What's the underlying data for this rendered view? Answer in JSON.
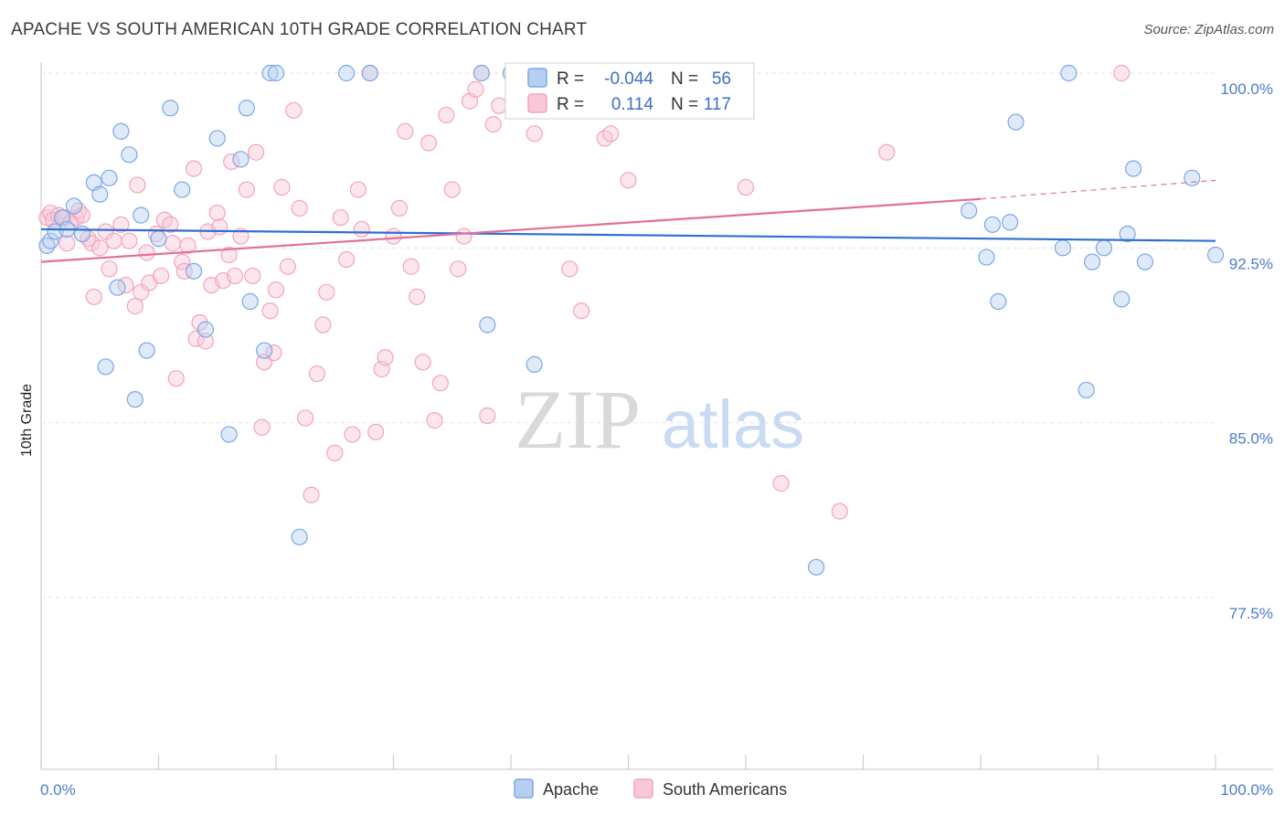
{
  "title": "APACHE VS SOUTH AMERICAN 10TH GRADE CORRELATION CHART",
  "source": "Source: ZipAtlas.com",
  "watermark": {
    "zip": "ZIP",
    "atlas": "atlas"
  },
  "chart_data": {
    "type": "scatter",
    "ylabel": "10th Grade",
    "xlim": [
      0,
      100
    ],
    "ylim": [
      70,
      101
    ],
    "x_tick_labels": [
      "0.0%",
      "100.0%"
    ],
    "y_ticks": [
      {
        "value": 100,
        "label": "100.0%"
      },
      {
        "value": 92.5,
        "label": "92.5%"
      },
      {
        "value": 85,
        "label": "85.0%"
      },
      {
        "value": 77.5,
        "label": "77.5%"
      }
    ],
    "grid": true,
    "legend_position": "top-center",
    "series": [
      {
        "name": "Apache",
        "color": "#7aa7e6",
        "line_color": "#2f6fd0",
        "r_label": "R =",
        "r_value": "-0.044",
        "n_label": "N =",
        "n_value": "56",
        "trend": {
          "x": [
            0,
            100
          ],
          "y": [
            93.3,
            92.8
          ]
        },
        "points": [
          [
            0.5,
            92.6
          ],
          [
            0.8,
            92.8
          ],
          [
            1.2,
            93.2
          ],
          [
            1.8,
            93.8
          ],
          [
            2.2,
            93.3
          ],
          [
            2.8,
            94.3
          ],
          [
            3.5,
            93.1
          ],
          [
            4.5,
            95.3
          ],
          [
            5,
            94.8
          ],
          [
            5.8,
            95.5
          ],
          [
            6.5,
            90.8
          ],
          [
            6.8,
            97.5
          ],
          [
            7.5,
            96.5
          ],
          [
            8.5,
            93.9
          ],
          [
            9,
            88.1
          ],
          [
            8,
            86.0
          ],
          [
            5.5,
            87.4
          ],
          [
            10,
            92.9
          ],
          [
            11,
            98.5
          ],
          [
            12,
            95.0
          ],
          [
            13,
            91.5
          ],
          [
            14,
            89.0
          ],
          [
            15,
            97.2
          ],
          [
            16,
            84.5
          ],
          [
            17,
            96.3
          ],
          [
            17.5,
            98.5
          ],
          [
            17.8,
            90.2
          ],
          [
            19,
            88.1
          ],
          [
            19.5,
            100
          ],
          [
            20,
            100
          ],
          [
            22,
            80.1
          ],
          [
            26,
            100
          ],
          [
            28,
            100
          ],
          [
            38,
            89.2
          ],
          [
            37.5,
            100
          ],
          [
            40,
            100
          ],
          [
            42,
            87.5
          ],
          [
            43,
            100
          ],
          [
            44,
            100
          ],
          [
            46,
            100
          ],
          [
            66,
            78.8
          ],
          [
            79,
            94.1
          ],
          [
            80.5,
            92.1
          ],
          [
            81,
            93.5
          ],
          [
            81.5,
            90.2
          ],
          [
            82.5,
            93.6
          ],
          [
            83,
            97.9
          ],
          [
            87,
            92.5
          ],
          [
            87.5,
            100
          ],
          [
            89.5,
            91.9
          ],
          [
            90.5,
            92.5
          ],
          [
            89,
            86.4
          ],
          [
            92,
            90.3
          ],
          [
            92.5,
            93.1
          ],
          [
            93,
            95.9
          ],
          [
            94,
            91.9
          ],
          [
            98,
            95.5
          ],
          [
            100,
            92.2
          ]
        ]
      },
      {
        "name": "South Americans",
        "color": "#f4a3bd",
        "line_color": "#e0709a",
        "r_label": "R =",
        "r_value": "0.114",
        "n_label": "N =",
        "n_value": "117",
        "trend": {
          "x": [
            0,
            80
          ],
          "y": [
            91.9,
            94.6
          ]
        },
        "trend_dashed": {
          "x": [
            80,
            100
          ],
          "y": [
            94.6,
            95.4
          ]
        },
        "points": [
          [
            0.5,
            93.8
          ],
          [
            0.8,
            94.0
          ],
          [
            1,
            93.7
          ],
          [
            1.5,
            93.9
          ],
          [
            2,
            93.8
          ],
          [
            2.2,
            92.7
          ],
          [
            2.5,
            93.6
          ],
          [
            3,
            93.8
          ],
          [
            3.2,
            94.1
          ],
          [
            3.5,
            93.9
          ],
          [
            4,
            92.9
          ],
          [
            4.3,
            92.7
          ],
          [
            4.5,
            90.4
          ],
          [
            5,
            92.5
          ],
          [
            5.5,
            93.2
          ],
          [
            5.8,
            91.6
          ],
          [
            6.2,
            92.8
          ],
          [
            6.8,
            93.5
          ],
          [
            7.2,
            90.9
          ],
          [
            7.5,
            92.8
          ],
          [
            8,
            90.0
          ],
          [
            8.2,
            95.2
          ],
          [
            8.5,
            90.6
          ],
          [
            9,
            92.3
          ],
          [
            9.2,
            91.0
          ],
          [
            9.8,
            93.1
          ],
          [
            10.2,
            91.3
          ],
          [
            10.5,
            93.7
          ],
          [
            11,
            93.5
          ],
          [
            11.2,
            92.7
          ],
          [
            11.5,
            86.9
          ],
          [
            12,
            91.9
          ],
          [
            12.2,
            91.5
          ],
          [
            12.5,
            92.6
          ],
          [
            13,
            95.9
          ],
          [
            13.2,
            88.6
          ],
          [
            13.5,
            89.3
          ],
          [
            14,
            88.5
          ],
          [
            14.2,
            93.2
          ],
          [
            14.5,
            90.9
          ],
          [
            15,
            94.0
          ],
          [
            15.2,
            93.4
          ],
          [
            15.5,
            91.1
          ],
          [
            16,
            92.2
          ],
          [
            16.2,
            96.2
          ],
          [
            16.5,
            91.3
          ],
          [
            17,
            93.0
          ],
          [
            17.5,
            95.0
          ],
          [
            18,
            91.3
          ],
          [
            18.3,
            96.6
          ],
          [
            18.8,
            84.8
          ],
          [
            19,
            87.6
          ],
          [
            19.5,
            89.8
          ],
          [
            19.8,
            88.0
          ],
          [
            20,
            90.7
          ],
          [
            20.5,
            95.1
          ],
          [
            21,
            91.7
          ],
          [
            21.5,
            98.4
          ],
          [
            22,
            94.2
          ],
          [
            22.5,
            85.2
          ],
          [
            23,
            81.9
          ],
          [
            23.5,
            87.1
          ],
          [
            24,
            89.2
          ],
          [
            24.3,
            90.6
          ],
          [
            25,
            83.7
          ],
          [
            25.5,
            93.8
          ],
          [
            26,
            92.0
          ],
          [
            26.5,
            84.5
          ],
          [
            27,
            95.0
          ],
          [
            27.3,
            93.3
          ],
          [
            28,
            100
          ],
          [
            28.5,
            84.6
          ],
          [
            29,
            87.3
          ],
          [
            29.3,
            87.8
          ],
          [
            30,
            93.0
          ],
          [
            30.5,
            94.2
          ],
          [
            31,
            97.5
          ],
          [
            31.5,
            91.7
          ],
          [
            32,
            90.4
          ],
          [
            32.5,
            87.6
          ],
          [
            33,
            97.0
          ],
          [
            33.5,
            85.1
          ],
          [
            34,
            86.7
          ],
          [
            34.5,
            98.2
          ],
          [
            35,
            95.0
          ],
          [
            35.5,
            91.6
          ],
          [
            36,
            93.0
          ],
          [
            36.5,
            98.8
          ],
          [
            37,
            99.3
          ],
          [
            37.5,
            100
          ],
          [
            38,
            85.3
          ],
          [
            38.5,
            97.8
          ],
          [
            39,
            98.6
          ],
          [
            40,
            100
          ],
          [
            41,
            98.4
          ],
          [
            42,
            97.4
          ],
          [
            43,
            99.6
          ],
          [
            44,
            100
          ],
          [
            45,
            91.6
          ],
          [
            46,
            89.8
          ],
          [
            47,
            100
          ],
          [
            48,
            97.2
          ],
          [
            48.5,
            97.4
          ],
          [
            50,
            95.4
          ],
          [
            52,
            100
          ],
          [
            55,
            100
          ],
          [
            60,
            95.1
          ],
          [
            63,
            82.4
          ],
          [
            68,
            81.2
          ],
          [
            72,
            96.6
          ],
          [
            92,
            100
          ]
        ]
      }
    ]
  }
}
